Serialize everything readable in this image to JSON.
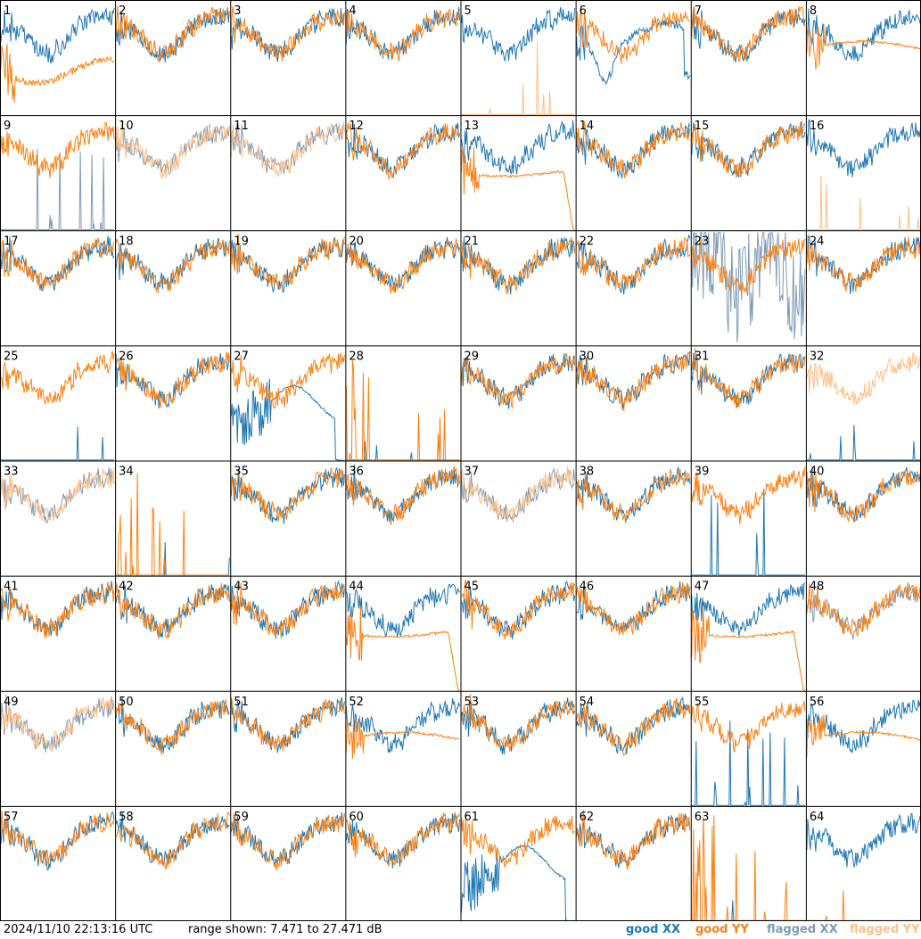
{
  "chart_data": {
    "type": "line",
    "layout": "8x8 small multiples",
    "title": "",
    "xlabel": "",
    "ylabel": "",
    "ylim": [
      7.471,
      27.471
    ],
    "grid": true,
    "legend_placement": "bottom-right",
    "panels": [
      {
        "id": "1",
        "xx": "good",
        "yy": "good",
        "variant": "noisy-yy-low"
      },
      {
        "id": "2",
        "xx": "good",
        "yy": "good",
        "variant": "normal"
      },
      {
        "id": "3",
        "xx": "good",
        "yy": "good",
        "variant": "normal"
      },
      {
        "id": "4",
        "xx": "good",
        "yy": "good",
        "variant": "normal"
      },
      {
        "id": "5",
        "xx": "good",
        "yy": "flagged",
        "variant": "yy-spikes"
      },
      {
        "id": "6",
        "xx": "good",
        "yy": "good",
        "variant": "xx-dip"
      },
      {
        "id": "7",
        "xx": "good",
        "yy": "good",
        "variant": "normal"
      },
      {
        "id": "8",
        "xx": "good",
        "yy": "good",
        "variant": "smooth-yy"
      },
      {
        "id": "9",
        "xx": "flagged",
        "yy": "good",
        "variant": "xx-spikes"
      },
      {
        "id": "10",
        "xx": "flagged",
        "yy": "flagged",
        "variant": "normal"
      },
      {
        "id": "11",
        "xx": "flagged",
        "yy": "flagged",
        "variant": "normal"
      },
      {
        "id": "12",
        "xx": "good",
        "yy": "good",
        "variant": "normal"
      },
      {
        "id": "13",
        "xx": "good",
        "yy": "good",
        "variant": "smooth-yy-drop"
      },
      {
        "id": "14",
        "xx": "good",
        "yy": "good",
        "variant": "normal"
      },
      {
        "id": "15",
        "xx": "good",
        "yy": "good",
        "variant": "normal"
      },
      {
        "id": "16",
        "xx": "good",
        "yy": "flagged",
        "variant": "yy-spikes"
      },
      {
        "id": "17",
        "xx": "good",
        "yy": "good",
        "variant": "normal"
      },
      {
        "id": "18",
        "xx": "good",
        "yy": "good",
        "variant": "normal"
      },
      {
        "id": "19",
        "xx": "good",
        "yy": "good",
        "variant": "normal"
      },
      {
        "id": "20",
        "xx": "good",
        "yy": "good",
        "variant": "normal"
      },
      {
        "id": "21",
        "xx": "good",
        "yy": "good",
        "variant": "normal"
      },
      {
        "id": "22",
        "xx": "good",
        "yy": "good",
        "variant": "normal"
      },
      {
        "id": "23",
        "xx": "flagged",
        "yy": "good",
        "variant": "xx-chaos"
      },
      {
        "id": "24",
        "xx": "good",
        "yy": "good",
        "variant": "normal"
      },
      {
        "id": "25",
        "xx": "good",
        "yy": "good",
        "variant": "xx-flat-low"
      },
      {
        "id": "26",
        "xx": "good",
        "yy": "good",
        "variant": "normal"
      },
      {
        "id": "27",
        "xx": "good",
        "yy": "good",
        "variant": "xx-hump"
      },
      {
        "id": "28",
        "xx": "good",
        "yy": "good",
        "variant": "yy-spikes-dense"
      },
      {
        "id": "29",
        "xx": "good",
        "yy": "good",
        "variant": "normal"
      },
      {
        "id": "30",
        "xx": "good",
        "yy": "good",
        "variant": "normal"
      },
      {
        "id": "31",
        "xx": "good",
        "yy": "good",
        "variant": "normal"
      },
      {
        "id": "32",
        "xx": "good",
        "yy": "flagged",
        "variant": "xx-flat-low"
      },
      {
        "id": "33",
        "xx": "flagged",
        "yy": "flagged",
        "variant": "normal"
      },
      {
        "id": "34",
        "xx": "good",
        "yy": "good",
        "variant": "yy-spikes-dense"
      },
      {
        "id": "35",
        "xx": "good",
        "yy": "good",
        "variant": "normal"
      },
      {
        "id": "36",
        "xx": "good",
        "yy": "good",
        "variant": "normal"
      },
      {
        "id": "37",
        "xx": "flagged",
        "yy": "flagged",
        "variant": "normal"
      },
      {
        "id": "38",
        "xx": "good",
        "yy": "good",
        "variant": "normal"
      },
      {
        "id": "39",
        "xx": "good",
        "yy": "good",
        "variant": "xx-spikes"
      },
      {
        "id": "40",
        "xx": "good",
        "yy": "good",
        "variant": "normal"
      },
      {
        "id": "41",
        "xx": "good",
        "yy": "good",
        "variant": "normal"
      },
      {
        "id": "42",
        "xx": "good",
        "yy": "good",
        "variant": "normal"
      },
      {
        "id": "43",
        "xx": "good",
        "yy": "good",
        "variant": "normal"
      },
      {
        "id": "44",
        "xx": "good",
        "yy": "good",
        "variant": "smooth-yy-drop"
      },
      {
        "id": "45",
        "xx": "good",
        "yy": "good",
        "variant": "normal"
      },
      {
        "id": "46",
        "xx": "good",
        "yy": "good",
        "variant": "normal"
      },
      {
        "id": "47",
        "xx": "good",
        "yy": "good",
        "variant": "smooth-yy-drop"
      },
      {
        "id": "48",
        "xx": "flagged",
        "yy": "good",
        "variant": "normal"
      },
      {
        "id": "49",
        "xx": "flagged",
        "yy": "flagged",
        "variant": "normal"
      },
      {
        "id": "50",
        "xx": "good",
        "yy": "good",
        "variant": "normal"
      },
      {
        "id": "51",
        "xx": "good",
        "yy": "good",
        "variant": "normal"
      },
      {
        "id": "52",
        "xx": "good",
        "yy": "good",
        "variant": "smooth-yy"
      },
      {
        "id": "53",
        "xx": "good",
        "yy": "good",
        "variant": "normal"
      },
      {
        "id": "54",
        "xx": "good",
        "yy": "good",
        "variant": "normal"
      },
      {
        "id": "55",
        "xx": "good",
        "yy": "good",
        "variant": "xx-spikes"
      },
      {
        "id": "56",
        "xx": "good",
        "yy": "good",
        "variant": "smooth-yy"
      },
      {
        "id": "57",
        "xx": "good",
        "yy": "good",
        "variant": "normal"
      },
      {
        "id": "58",
        "xx": "good",
        "yy": "good",
        "variant": "normal"
      },
      {
        "id": "59",
        "xx": "good",
        "yy": "good",
        "variant": "normal"
      },
      {
        "id": "60",
        "xx": "good",
        "yy": "good",
        "variant": "normal"
      },
      {
        "id": "61",
        "xx": "good",
        "yy": "good",
        "variant": "xx-hump"
      },
      {
        "id": "62",
        "xx": "good",
        "yy": "good",
        "variant": "normal"
      },
      {
        "id": "63",
        "xx": "good",
        "yy": "good",
        "variant": "yy-spikes-dense"
      },
      {
        "id": "64",
        "xx": "good",
        "yy": "good",
        "variant": "xx-only"
      }
    ]
  },
  "footer": {
    "timestamp": "2024/11/10 22:13:16 UTC",
    "range_label": "range shown: 7.471 to 27.471 dB",
    "legend": {
      "good_xx": "good XX",
      "good_yy": "good YY",
      "flagged_xx": "flagged XX",
      "flagged_yy": "flagged YY"
    }
  },
  "colors": {
    "good_xx": "#1f77b4",
    "good_yy": "#ff7f0e",
    "flagged_xx": "#7f9bb5",
    "flagged_yy": "#ffbf87"
  }
}
